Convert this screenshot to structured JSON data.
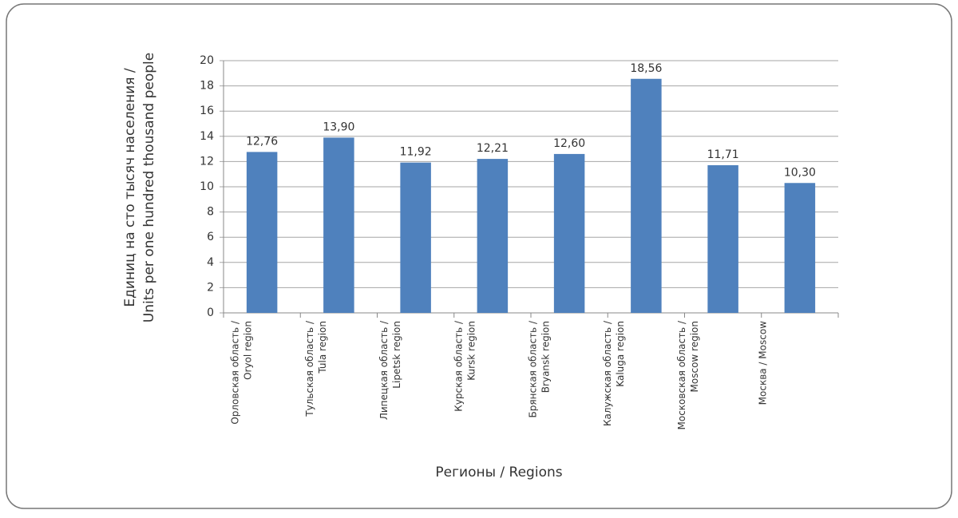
{
  "chart_data": {
    "type": "bar",
    "ylabel": [
      "Единиц на сто тысяч населения /",
      "Units per one hundred thousand people"
    ],
    "xlabel": "Регионы / Regions",
    "categories": [
      [
        "Орловская область /",
        "Oryol region"
      ],
      [
        "Тульская область /",
        "Tula region"
      ],
      [
        "Липецкая область /",
        "Lipetsk region"
      ],
      [
        "Курская область /",
        "Kursk region"
      ],
      [
        "Брянская область /",
        "Bryansk region"
      ],
      [
        "Калужская область /",
        "Kaluga region"
      ],
      [
        "Московская область /",
        "Moscow region"
      ],
      [
        "Москва / Moscow"
      ]
    ],
    "values": [
      12.76,
      13.9,
      11.92,
      12.21,
      12.6,
      18.56,
      11.71,
      10.3
    ],
    "value_labels": [
      "12,76",
      "13,90",
      "11,92",
      "12,21",
      "12,60",
      "18,56",
      "11,71",
      "10,30"
    ],
    "color": "#4f81bd",
    "ylim": [
      0,
      20
    ],
    "yticks": [
      0,
      2,
      4,
      6,
      8,
      10,
      12,
      14,
      16,
      18,
      20
    ],
    "grid": true
  }
}
